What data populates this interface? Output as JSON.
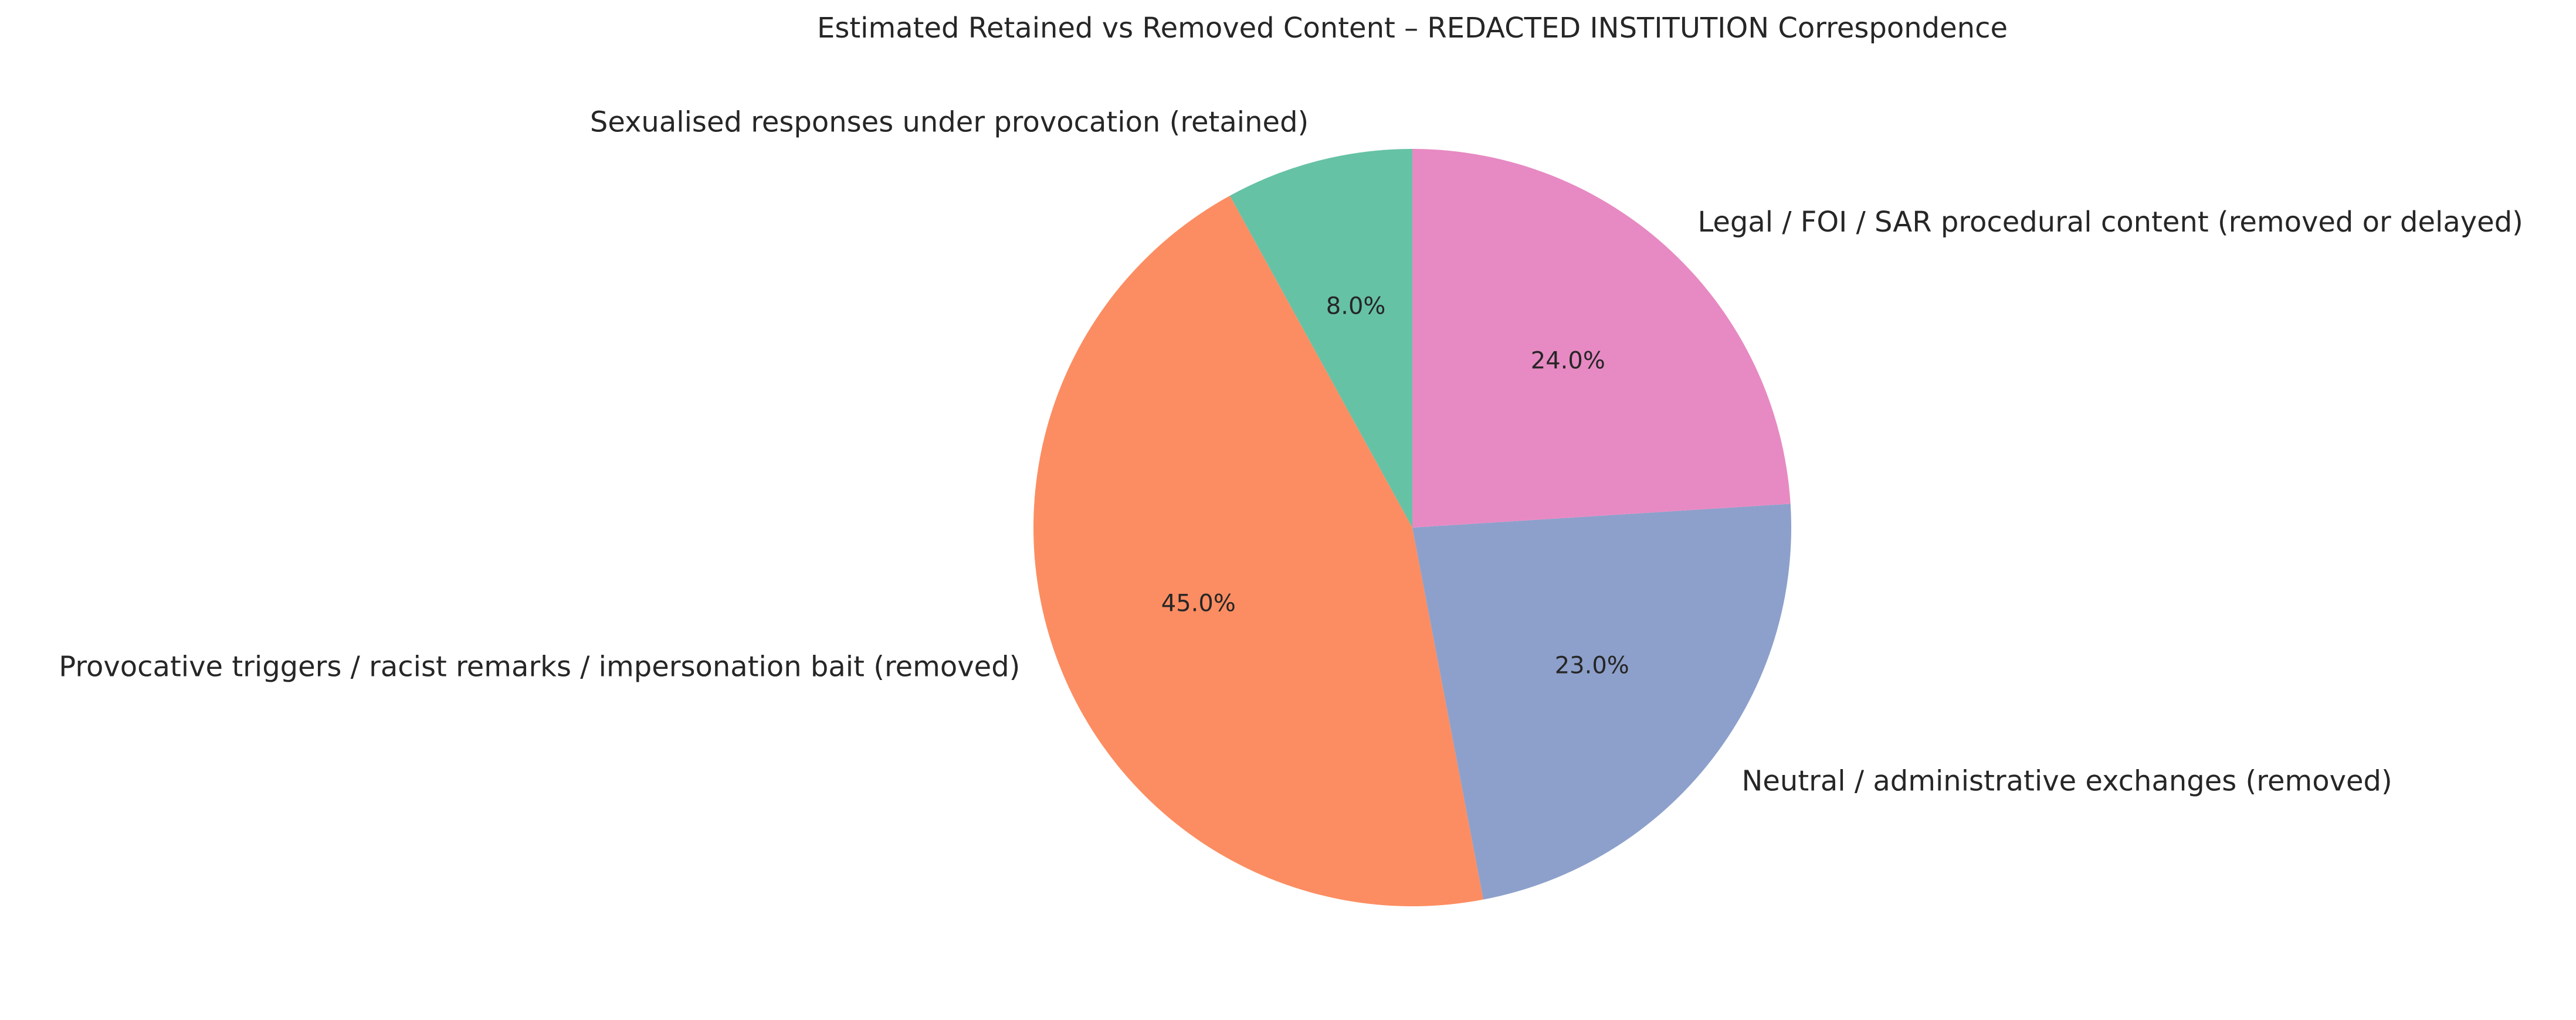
{
  "chart_data": {
    "type": "pie",
    "title": "Estimated Retained vs Removed Content – REDACTED INSTITUTION Correspondence",
    "slices": [
      {
        "label": "Sexualised responses under provocation (retained)",
        "value": 8.0,
        "pct_label": "8.0%",
        "color": "#66c2a5"
      },
      {
        "label": "Provocative triggers / racist remarks / impersonation bait (removed)",
        "value": 45.0,
        "pct_label": "45.0%",
        "color": "#fc8d62"
      },
      {
        "label": "Neutral / administrative exchanges (removed)",
        "value": 23.0,
        "pct_label": "23.0%",
        "color": "#8da0cb"
      },
      {
        "label": "Legal / FOI / SAR procedural content (removed or delayed)",
        "value": 24.0,
        "pct_label": "24.0%",
        "color": "#e78ac3"
      }
    ],
    "start_angle_deg": 90,
    "direction": "counterclockwise",
    "legend": "none"
  }
}
